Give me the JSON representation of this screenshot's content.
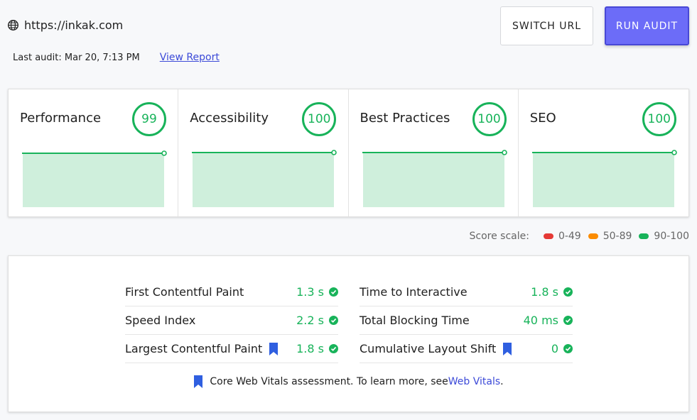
{
  "header": {
    "url": "https://inkak.com",
    "last_audit_label": "Last audit: Mar 20, 7:13 PM",
    "view_report": "View Report",
    "switch_url": "SWITCH URL",
    "run_audit": "RUN AUDIT"
  },
  "categories": [
    {
      "name": "Performance",
      "score": "99"
    },
    {
      "name": "Accessibility",
      "score": "100"
    },
    {
      "name": "Best Practices",
      "score": "100"
    },
    {
      "name": "SEO",
      "score": "100"
    }
  ],
  "score_scale": {
    "label": "Score scale:",
    "ranges": [
      {
        "label": "0-49",
        "color": "#e53935"
      },
      {
        "label": "50-89",
        "color": "#fb8c00"
      },
      {
        "label": "90-100",
        "color": "#18b35a"
      }
    ]
  },
  "metrics": {
    "left": [
      {
        "name": "First Contentful Paint",
        "value": "1.3 s"
      },
      {
        "name": "Speed Index",
        "value": "2.2 s"
      },
      {
        "name": "Largest Contentful Paint",
        "value": "1.8 s"
      }
    ],
    "right": [
      {
        "name": "Time to Interactive",
        "value": "1.8 s"
      },
      {
        "name": "Total Blocking Time",
        "value": "40 ms"
      },
      {
        "name": "Cumulative Layout Shift",
        "value": "0"
      }
    ]
  },
  "footnote": {
    "text": "Core Web Vitals assessment. To learn more, see ",
    "link": "Web Vitals",
    "end": "."
  },
  "colors": {
    "good": "#18b35a",
    "accent": "#6c6cf8",
    "link": "#3c4ad8",
    "vitals_bookmark": "#2f5fe0"
  }
}
